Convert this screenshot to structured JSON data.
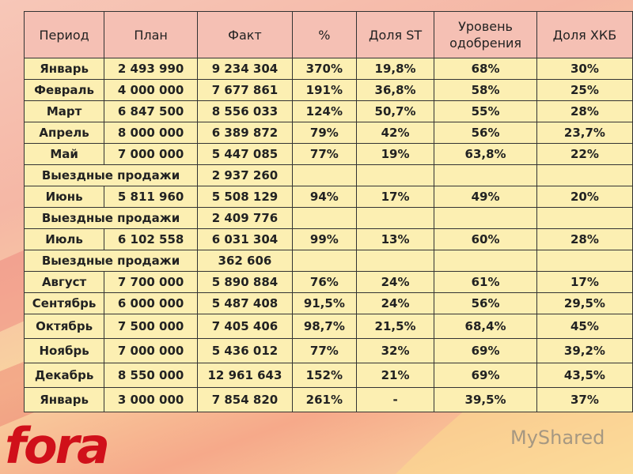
{
  "table": {
    "header": [
      "Период",
      "План",
      "Факт",
      "%",
      "Доля ST",
      "Уровень одобрения",
      "Доля ХКБ"
    ],
    "rows": [
      [
        "Январь",
        "2 493 990",
        "9 234 304",
        "370%",
        "19,8%",
        "68%",
        "30%"
      ],
      [
        "Февраль",
        "4 000 000",
        "7 677 861",
        "191%",
        "36,8%",
        "58%",
        "25%"
      ],
      [
        "Март",
        "6 847 500",
        "8 556 033",
        "124%",
        "50,7%",
        "55%",
        "28%"
      ],
      [
        "Апрель",
        "8 000 000",
        "6 389 872",
        "79%",
        "42%",
        "56%",
        "23,7%"
      ],
      [
        "Май",
        "7 000 000",
        "5 447 085",
        "77%",
        "19%",
        "63,8%",
        "22%"
      ],
      [
        "Выездные продажи",
        "2 937 260"
      ],
      [
        "Июнь",
        "5 811 960",
        "5 508 129",
        "94%",
        "17%",
        "49%",
        "20%"
      ],
      [
        "Выездные продажи",
        "2 409 776"
      ],
      [
        "Июль",
        "6 102 558",
        "6 031 304",
        "99%",
        "13%",
        "60%",
        "28%"
      ],
      [
        "Выездные продажи",
        "362 606"
      ],
      [
        "Август",
        "7 700 000",
        "5 890 884",
        "76%",
        "24%",
        "61%",
        "17%"
      ],
      [
        "Сентябрь",
        "6 000 000",
        "5 487 408",
        "91,5%",
        "24%",
        "56%",
        "29,5%"
      ],
      [
        "Октябрь",
        "7 500 000",
        "7 405 406",
        "98,7%",
        "21,5%",
        "68,4%",
        "45%"
      ],
      [
        "Ноябрь",
        "7 000 000",
        "5 436 012",
        "77%",
        "32%",
        "69%",
        "39,2%"
      ],
      [
        "Декабрь",
        "8 550 000",
        "12 961 643",
        "152%",
        "21%",
        "69%",
        "43,5%"
      ],
      [
        "Январь",
        "3 000 000",
        "7 854 820",
        "261%",
        "-",
        "39,5%",
        "37%"
      ]
    ]
  },
  "logo": "fora",
  "watermark": "MyShared"
}
